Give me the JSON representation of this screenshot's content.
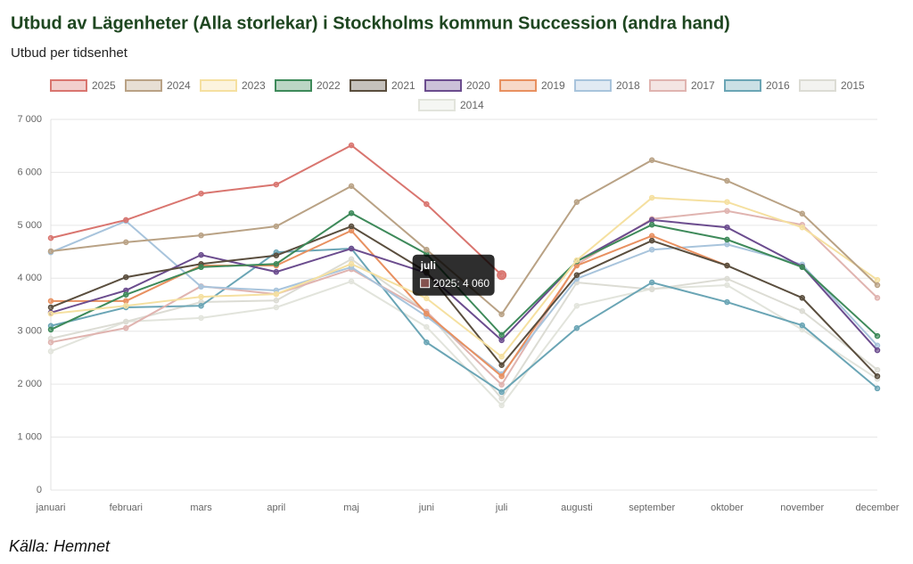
{
  "chart_data": {
    "type": "line",
    "title": "Utbud av Lägenheter (Alla storlekar) i Stockholms kommun Succession (andra hand)",
    "subtitle": "Utbud per tidsenhet",
    "source": "Källa: Hemnet",
    "categories": [
      "januari",
      "februari",
      "mars",
      "april",
      "maj",
      "juni",
      "juli",
      "augusti",
      "september",
      "oktober",
      "november",
      "december"
    ],
    "series": [
      {
        "name": "2025",
        "color": "#d9756f",
        "values": [
          4760,
          5100,
          5600,
          5770,
          6510,
          5400,
          4060,
          null,
          null,
          null,
          null,
          null
        ]
      },
      {
        "name": "2024",
        "color": "#b9a285",
        "values": [
          4510,
          4680,
          4810,
          4980,
          5740,
          4540,
          3320,
          5440,
          6230,
          5840,
          5220,
          3870
        ]
      },
      {
        "name": "2023",
        "color": "#f5e0a0",
        "values": [
          3330,
          3480,
          3650,
          3700,
          4270,
          3620,
          2520,
          4340,
          5520,
          5440,
          4960,
          3970
        ]
      },
      {
        "name": "2022",
        "color": "#3e8a5a",
        "values": [
          3030,
          3690,
          4210,
          4270,
          5230,
          4460,
          2930,
          4320,
          5010,
          4730,
          4210,
          2910
        ]
      },
      {
        "name": "2021",
        "color": "#5a4e3e",
        "values": [
          3450,
          4020,
          4270,
          4430,
          4980,
          4120,
          2360,
          4060,
          4710,
          4240,
          3630,
          2150
        ]
      },
      {
        "name": "2020",
        "color": "#6b4c8e",
        "values": [
          3350,
          3770,
          4440,
          4120,
          4560,
          4100,
          2830,
          4320,
          5100,
          4960,
          4220,
          2640
        ]
      },
      {
        "name": "2019",
        "color": "#e89060",
        "values": [
          3570,
          3570,
          4240,
          4240,
          4900,
          3330,
          2150,
          4240,
          4800,
          4240,
          null,
          null
        ]
      },
      {
        "name": "2018",
        "color": "#a8c4dc",
        "values": [
          4490,
          5080,
          3840,
          3770,
          4210,
          3280,
          2190,
          3990,
          4540,
          4640,
          4260,
          2730
        ]
      },
      {
        "name": "2017",
        "color": "#e0b4b0",
        "values": [
          2790,
          3060,
          3850,
          3700,
          4170,
          3370,
          1990,
          4260,
          5120,
          5270,
          5010,
          3630
        ]
      },
      {
        "name": "2016",
        "color": "#6aa5b5",
        "values": [
          3100,
          3450,
          3480,
          4490,
          4560,
          2790,
          1850,
          3060,
          3920,
          3550,
          3110,
          1920
        ]
      },
      {
        "name": "2015",
        "color": "#dcdcd4",
        "values": [
          2860,
          3180,
          3550,
          3580,
          4360,
          3370,
          1730,
          3920,
          3790,
          3990,
          3380,
          2270
        ]
      },
      {
        "name": "2014",
        "color": "#e2e4dc",
        "values": [
          2620,
          3180,
          3250,
          3450,
          3940,
          3080,
          1600,
          3480,
          3800,
          3870,
          3030,
          2100
        ]
      }
    ],
    "ylim": [
      0,
      7000
    ],
    "yticks": [
      0,
      {
        "value": 1000,
        "label": "1 000"
      },
      {
        "value": 2000,
        "label": "2 000"
      },
      {
        "value": 3000,
        "label": "3 000"
      },
      {
        "value": 4000,
        "label": "4 000"
      },
      {
        "value": 5000,
        "label": "5 000"
      },
      {
        "value": 6000,
        "label": "6 000"
      },
      {
        "value": 7000,
        "label": "7 000"
      }
    ],
    "grid": true,
    "legend": "top",
    "tooltip": {
      "title": "juli",
      "label": "2025: 4 060"
    }
  }
}
